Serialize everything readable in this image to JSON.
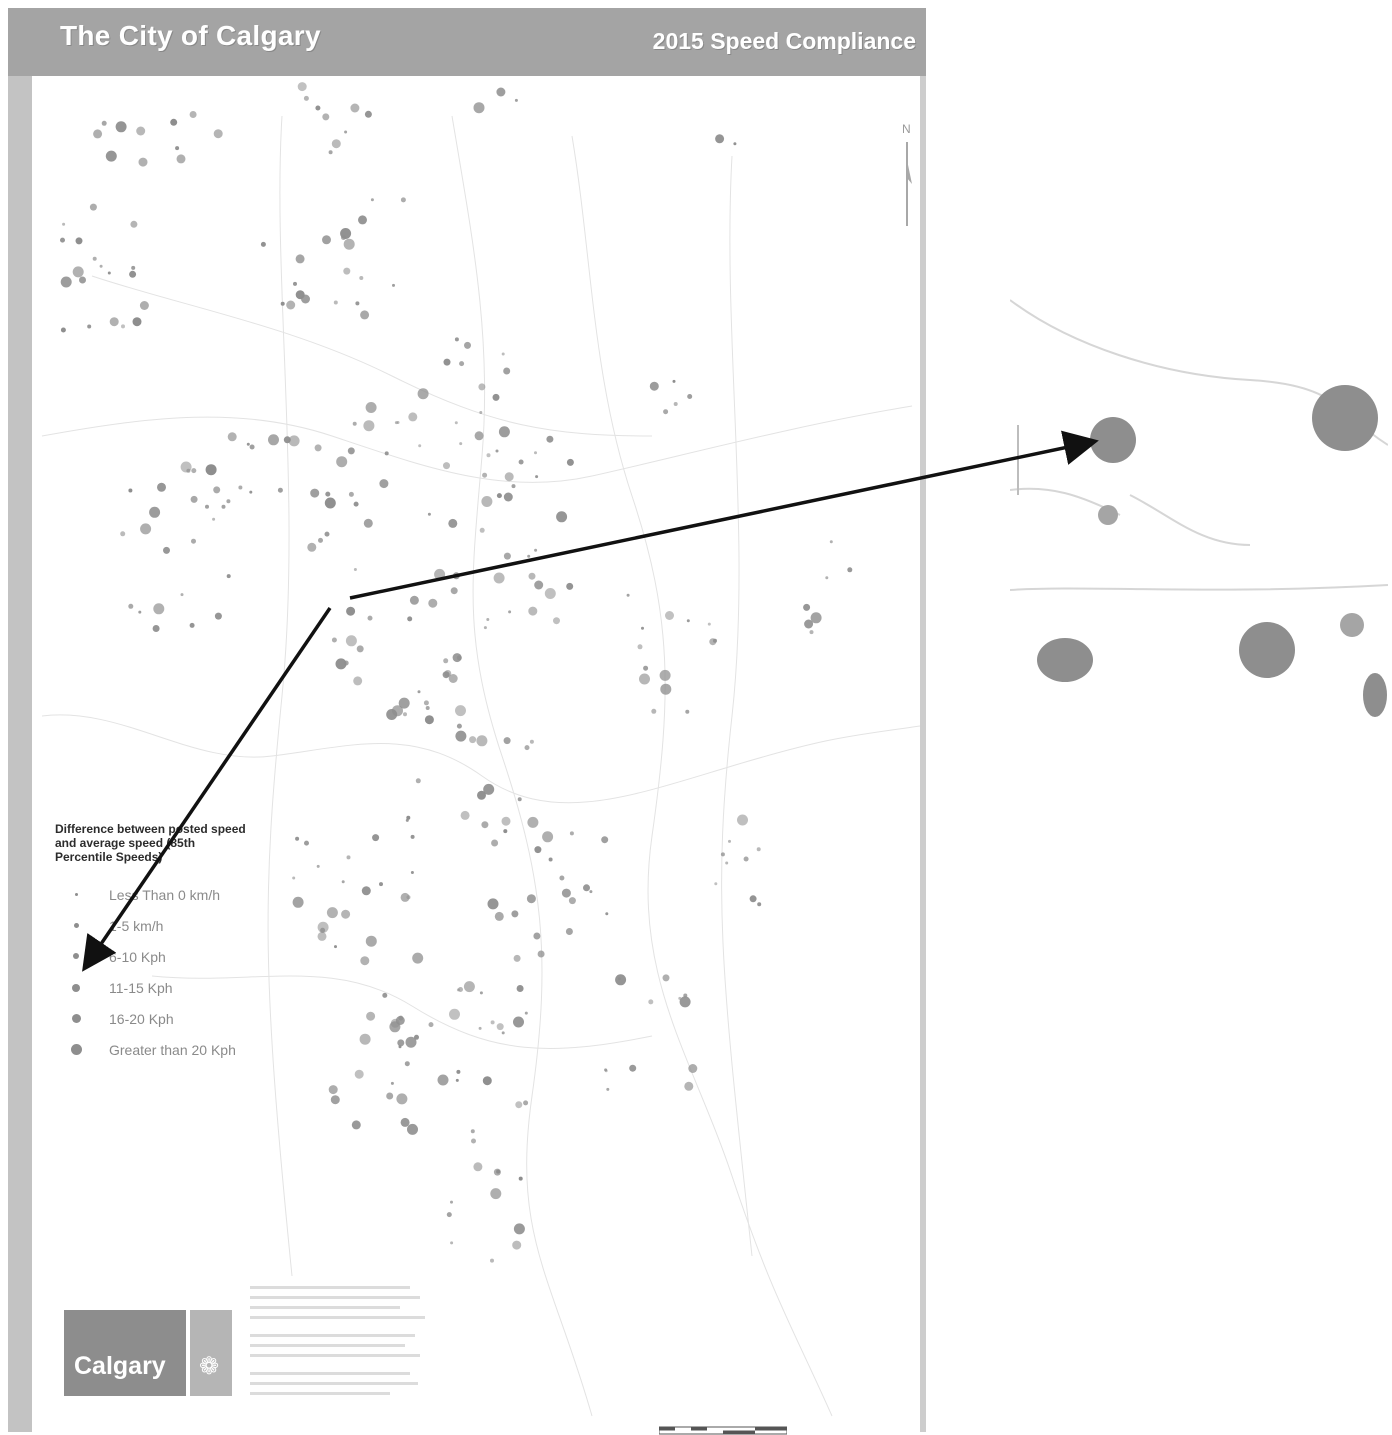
{
  "header": {
    "left_title": "The City of Calgary",
    "right_title": "2015 Speed Compliance"
  },
  "north_label": "N",
  "legend": {
    "title": "Difference between posted speed and average speed (85th Percentile Speeds)",
    "items": [
      {
        "label": "Less Than 0 km/h",
        "level": 1
      },
      {
        "label": "1-5 km/h",
        "level": 2
      },
      {
        "label": "6-10 Kph",
        "level": 3
      },
      {
        "label": "11-15 Kph",
        "level": 4
      },
      {
        "label": "16-20 Kph",
        "level": 5
      },
      {
        "label": "Greater than 20 Kph",
        "level": 6
      }
    ]
  },
  "logo": {
    "text": "Calgary",
    "emblem": "calgary-crest-icon"
  },
  "colors": {
    "header_bar": "#a4a4a4",
    "header_text": "#ffffff",
    "marker": "#8e8e8e",
    "frame": "#c3c3c3",
    "arrow": "#111111"
  }
}
